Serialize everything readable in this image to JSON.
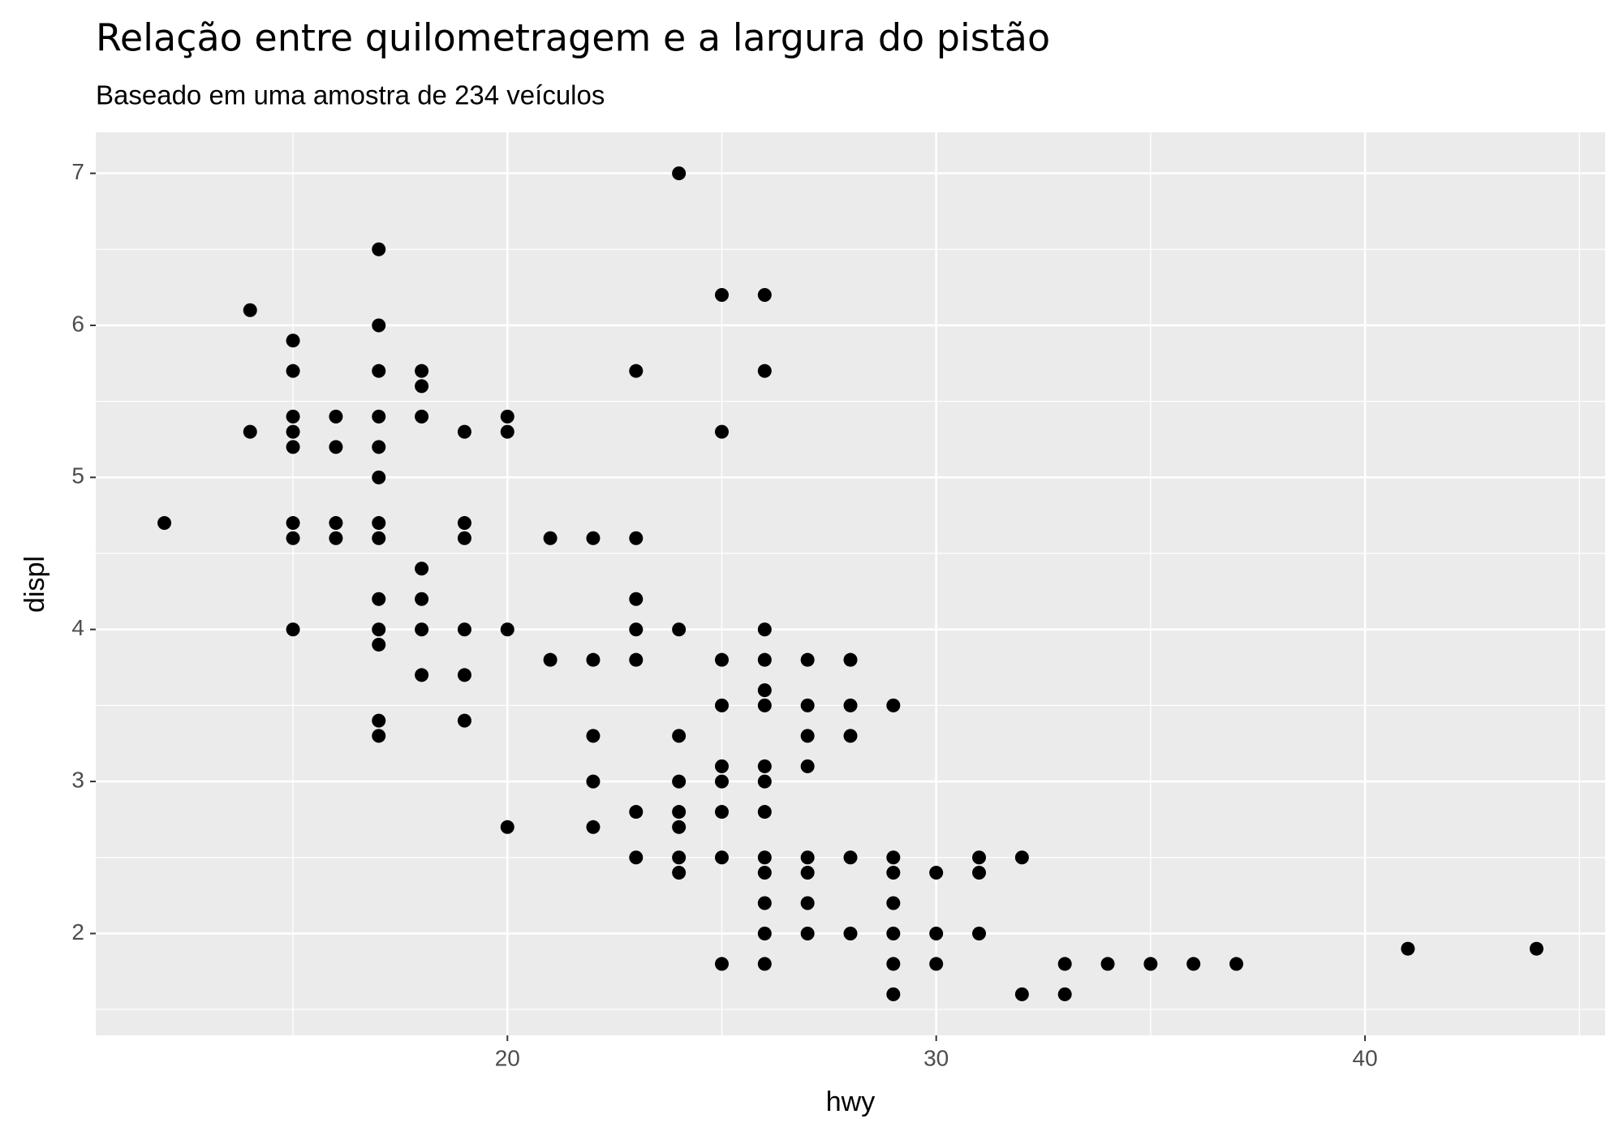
{
  "chart_data": {
    "type": "scatter",
    "title": "Relação entre quilometragem e a largura do pistão",
    "subtitle": "Baseado em uma amostra de 234 veículos",
    "x_label": "hwy",
    "y_label": "displ",
    "color": "#000000",
    "x": [
      12,
      14,
      14,
      15,
      15,
      15,
      15,
      15,
      15,
      15,
      15,
      16,
      16,
      16,
      16,
      17,
      17,
      17,
      17,
      17,
      17,
      17,
      17,
      17,
      17,
      17,
      17,
      17,
      18,
      18,
      18,
      18,
      18,
      18,
      18,
      19,
      19,
      19,
      19,
      19,
      19,
      20,
      20,
      20,
      20,
      21,
      21,
      22,
      22,
      22,
      22,
      22,
      23,
      23,
      23,
      23,
      23,
      23,
      23,
      24,
      24,
      24,
      24,
      24,
      24,
      24,
      24,
      25,
      25,
      25,
      25,
      25,
      25,
      25,
      25,
      25,
      26,
      26,
      26,
      26,
      26,
      26,
      26,
      26,
      26,
      26,
      26,
      26,
      26,
      26,
      27,
      27,
      27,
      27,
      27,
      27,
      27,
      27,
      28,
      28,
      28,
      28,
      28,
      29,
      29,
      29,
      29,
      29,
      29,
      29,
      30,
      30,
      30,
      31,
      31,
      31,
      32,
      32,
      33,
      33,
      34,
      35,
      36,
      37,
      41,
      44
    ],
    "values": [
      4.7,
      6.1,
      5.3,
      5.9,
      5.7,
      5.4,
      5.3,
      5.2,
      4.7,
      4.6,
      4.0,
      5.4,
      5.2,
      4.7,
      4.6,
      6.5,
      6.0,
      5.7,
      5.4,
      5.2,
      5.0,
      4.7,
      4.6,
      4.2,
      4.0,
      3.9,
      3.4,
      3.3,
      5.7,
      5.6,
      5.4,
      4.4,
      4.2,
      4.0,
      3.7,
      5.3,
      4.7,
      4.6,
      4.0,
      3.7,
      3.4,
      5.4,
      5.3,
      4.0,
      2.7,
      4.6,
      3.8,
      4.6,
      3.8,
      3.3,
      3.0,
      2.7,
      5.7,
      4.6,
      4.2,
      4.0,
      3.8,
      2.8,
      2.5,
      7.0,
      4.0,
      3.3,
      3.0,
      2.8,
      2.7,
      2.5,
      2.4,
      6.2,
      5.3,
      3.8,
      3.5,
      3.1,
      3.0,
      2.8,
      2.5,
      1.8,
      6.2,
      5.7,
      4.0,
      3.8,
      3.6,
      3.5,
      3.1,
      3.0,
      2.8,
      2.5,
      2.4,
      2.2,
      2.0,
      1.8,
      3.8,
      3.5,
      3.3,
      3.1,
      2.5,
      2.4,
      2.2,
      2.0,
      3.8,
      3.5,
      3.3,
      2.5,
      2.0,
      3.5,
      2.5,
      2.4,
      2.2,
      2.0,
      1.8,
      1.6,
      2.4,
      2.0,
      1.8,
      2.5,
      2.4,
      2.0,
      2.5,
      1.6,
      1.8,
      1.6,
      1.8,
      1.8,
      1.8,
      1.8,
      1.9,
      1.9
    ],
    "xlim": [
      10.4,
      45.6
    ],
    "xticks": [
      20,
      30,
      40
    ],
    "ylim": [
      1.33,
      7.27
    ],
    "yticks": [
      2,
      3,
      4,
      5,
      6,
      7
    ],
    "grid": true
  }
}
